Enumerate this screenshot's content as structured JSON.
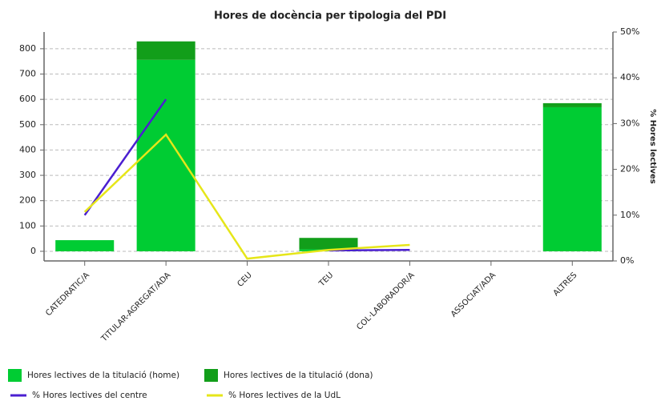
{
  "chart_data": {
    "type": "bar",
    "title": "Hores de docència per tipologia del PDI",
    "y2_label": "% Hores lectives",
    "categories": [
      "CATEDRATIC/A",
      "TITULAR-AGREGAT/ADA",
      "CEU",
      "TEU",
      "COL·LABORADOR/A",
      "ASSOCIAT/ADA",
      "ALTRES"
    ],
    "series": [
      {
        "name": "Hores lectives de la titulació (home)",
        "color": "#00cc33",
        "values": [
          44,
          756,
          0,
          8,
          0,
          0,
          569
        ]
      },
      {
        "name": "Hores lectives de la titulació (dona)",
        "color": "#129e1a",
        "values": [
          0,
          73,
          0,
          45,
          0,
          0,
          16
        ]
      },
      {
        "name": "% Hores lectives del centre",
        "color": "#4b1fd1",
        "type": "line",
        "axis": "y2",
        "values": [
          10.0,
          35.3,
          null,
          2.3,
          2.4,
          null,
          null
        ]
      },
      {
        "name": "% Hores lectives de la UdL",
        "color": "#e6e619",
        "type": "line",
        "axis": "y2",
        "values": [
          10.7,
          27.6,
          0.5,
          2.4,
          3.5,
          null,
          null
        ]
      }
    ],
    "stacked": true,
    "ylim": [
      -38,
      866
    ],
    "yticks": [
      0,
      100,
      200,
      300,
      400,
      500,
      600,
      700,
      800
    ],
    "y2lim": [
      0,
      50
    ],
    "y2ticks": [
      {
        "value": 0,
        "label": "0%"
      },
      {
        "value": 10,
        "label": "10%"
      },
      {
        "value": 20,
        "label": "20%"
      },
      {
        "value": 30,
        "label": "30%"
      },
      {
        "value": 40,
        "label": "40%"
      },
      {
        "value": 50,
        "label": "50%"
      }
    ],
    "grid": true
  }
}
